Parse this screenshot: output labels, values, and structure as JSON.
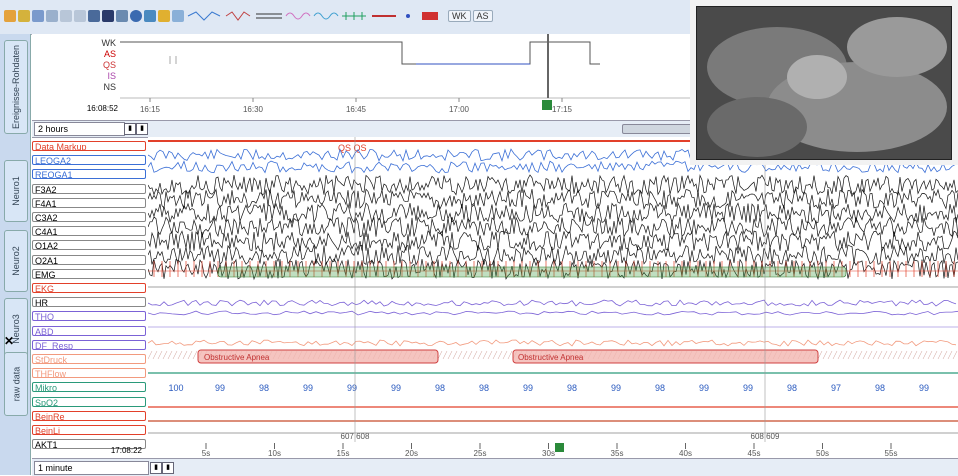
{
  "toolbar": {
    "wk_label": "WK",
    "as_label": "AS"
  },
  "sidebar": {
    "tabs": [
      "Ereignisse-Rohdaten",
      "Neuro1",
      "Neuro2",
      "Neuro3",
      "raw data"
    ],
    "close_glyph": "✕"
  },
  "hypnogram": {
    "stages": [
      "WK",
      "AS",
      "QS",
      "IS",
      "NS"
    ],
    "stage_colors": [
      "#333333",
      "#cc0000",
      "#cc3333",
      "#aa44aa",
      "#333333"
    ],
    "time": "16:08:52",
    "ticks": [
      "16:15",
      "16:30",
      "16:45",
      "17:00",
      "17:15"
    ]
  },
  "zoom": {
    "range": "2 hours"
  },
  "channels": [
    {
      "label": "Data Markup",
      "color": "#e2402a"
    },
    {
      "label": "LEOGA2",
      "color": "#3b6fd6"
    },
    {
      "label": "REOGA1",
      "color": "#3b6fd6"
    },
    {
      "label": "F3A2",
      "color": "#000000"
    },
    {
      "label": "F4A1",
      "color": "#000000"
    },
    {
      "label": "C3A2",
      "color": "#000000"
    },
    {
      "label": "C4A1",
      "color": "#000000"
    },
    {
      "label": "O1A2",
      "color": "#000000"
    },
    {
      "label": "O2A1",
      "color": "#000000"
    },
    {
      "label": "EMG",
      "color": "#000000"
    },
    {
      "label": "EKG",
      "color": "#e2402a"
    },
    {
      "label": "HR",
      "color": "#000000"
    },
    {
      "label": "THO",
      "color": "#7b62d6"
    },
    {
      "label": "ABD",
      "color": "#7b62d6"
    },
    {
      "label": "DF_Resp",
      "color": "#7b62d6"
    },
    {
      "label": "StDruck",
      "color": "#f29a7e"
    },
    {
      "label": "THFlow",
      "color": "#f29a7e"
    },
    {
      "label": "Mikro",
      "color": "#2a9a7a"
    },
    {
      "label": "SpO2",
      "color": "#2a9a7a"
    },
    {
      "label": "BeinRe",
      "color": "#e2402a"
    },
    {
      "label": "BeinLi",
      "color": "#e2402a"
    },
    {
      "label": "AKT1",
      "color": "#000000"
    }
  ],
  "markup": {
    "annotation": "QS QS"
  },
  "events": {
    "obstructive_label": "Obstructive Apnea"
  },
  "spo2_values": [
    "100",
    "99",
    "98",
    "99",
    "99",
    "99",
    "98",
    "98",
    "99",
    "98",
    "99",
    "98",
    "99",
    "99",
    "98",
    "97",
    "98",
    "99"
  ],
  "epochs": {
    "left_pair": "607 608",
    "right_pair": "608 609"
  },
  "bottom": {
    "time": "17:08:22",
    "range": "1 minute",
    "ticks": [
      "5s",
      "10s",
      "15s",
      "20s",
      "25s",
      "30s",
      "35s",
      "40s",
      "45s",
      "50s",
      "55s"
    ]
  }
}
